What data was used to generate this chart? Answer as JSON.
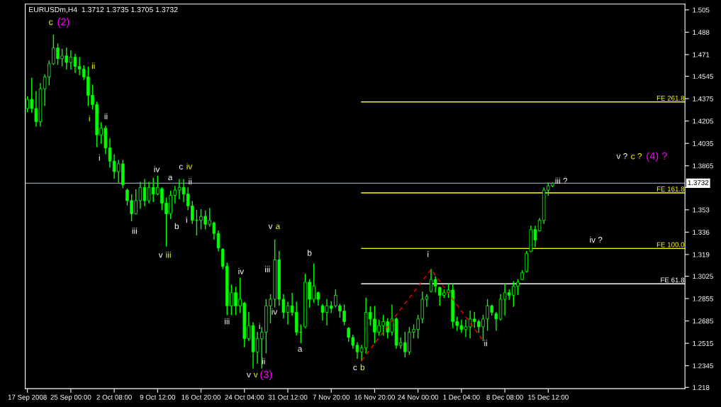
{
  "chart_data": {
    "type": "candlestick",
    "title": "EURUSDm,H4  1.3712 1.3735 1.3705 1.3732",
    "color": "#00ff00",
    "categories": [
      "17 Sep 2008",
      null,
      null,
      null,
      null,
      null,
      null,
      null,
      null,
      null,
      "25 Sep 00:00",
      null,
      null,
      null,
      null,
      null,
      null,
      null,
      null,
      null,
      "2 Oct 08:00",
      null,
      null,
      null,
      null,
      null,
      null,
      null,
      null,
      null,
      "9 Oct 12:00",
      null,
      null,
      null,
      null,
      null,
      null,
      null,
      null,
      null,
      "16 Oct 20:00",
      null,
      null,
      null,
      null,
      null,
      null,
      null,
      null,
      null,
      "24 Oct 04:00",
      null,
      null,
      null,
      null,
      null,
      null,
      null,
      null,
      null,
      "31 Oct 12:00",
      null,
      null,
      null,
      null,
      null,
      null,
      null,
      null,
      null,
      "7 Nov 20:00",
      null,
      null,
      null,
      null,
      null,
      null,
      null,
      null,
      null,
      "16 Nov 20:00",
      null,
      null,
      null,
      null,
      null,
      null,
      null,
      null,
      null,
      "24 Nov 00:00",
      null,
      null,
      null,
      null,
      null,
      null,
      null,
      null,
      null,
      "1 Dec 04:00",
      null,
      null,
      null,
      null,
      null,
      null,
      null,
      null,
      null,
      "8 Dec 08:00",
      null,
      null,
      null,
      null,
      null,
      null,
      null,
      null,
      null,
      "15 Dec 12:00",
      null,
      null,
      null,
      null,
      null,
      null,
      null,
      null,
      null,
      null,
      null,
      null,
      null,
      null,
      null,
      null,
      null,
      null,
      null,
      null,
      null,
      null,
      null,
      null,
      null,
      null,
      null,
      null,
      null,
      null,
      null
    ],
    "ohlc": [
      [
        1.43,
        1.439,
        1.4276,
        1.437
      ],
      [
        1.437,
        1.4531,
        1.427,
        1.43
      ],
      [
        1.43,
        1.4427,
        1.4166,
        1.42
      ],
      [
        1.42,
        1.4489,
        1.4166,
        1.445
      ],
      [
        1.445,
        1.4557,
        1.4323,
        1.454
      ],
      [
        1.454,
        1.4661,
        1.4479,
        1.464
      ],
      [
        1.464,
        1.4859,
        1.4635,
        1.476
      ],
      [
        1.476,
        1.4791,
        1.4635,
        1.468
      ],
      [
        1.468,
        1.475,
        1.4625,
        1.47
      ],
      [
        1.47,
        1.476,
        1.4599,
        1.465
      ],
      [
        1.465,
        1.4739,
        1.4599,
        1.469
      ],
      [
        1.469,
        1.4713,
        1.4573,
        1.462
      ],
      [
        1.462,
        1.4687,
        1.4557,
        1.46
      ],
      [
        1.46,
        1.4625,
        1.4521,
        1.454
      ],
      [
        1.454,
        1.4614,
        1.4323,
        1.44
      ],
      [
        1.44,
        1.4479,
        1.4296,
        1.433
      ],
      [
        1.433,
        1.4349,
        1.401,
        1.41
      ],
      [
        1.41,
        1.4192,
        1.4036,
        1.415
      ],
      [
        1.415,
        1.4166,
        1.3958,
        1.4
      ],
      [
        1.4,
        1.4072,
        1.3854,
        1.39
      ],
      [
        1.39,
        1.3947,
        1.377,
        1.382
      ],
      [
        1.382,
        1.3906,
        1.3739,
        1.388
      ],
      [
        1.388,
        1.3906,
        1.3697,
        1.372
      ],
      [
        1.368,
        1.3687,
        1.3567,
        1.36
      ],
      [
        1.36,
        1.3645,
        1.3447,
        1.35
      ],
      [
        1.35,
        1.3682,
        1.3499,
        1.36
      ],
      [
        1.36,
        1.3739,
        1.3541,
        1.37
      ],
      [
        1.37,
        1.376,
        1.3562,
        1.36
      ],
      [
        1.36,
        1.3739,
        1.3583,
        1.37
      ],
      [
        1.37,
        1.377,
        1.3593,
        1.365
      ],
      [
        1.365,
        1.3786,
        1.3645,
        1.37
      ],
      [
        1.369,
        1.3697,
        1.3531,
        1.358
      ],
      [
        1.358,
        1.3619,
        1.3254,
        1.35
      ],
      [
        1.35,
        1.3671,
        1.3463,
        1.364
      ],
      [
        1.364,
        1.3708,
        1.3583,
        1.368
      ],
      [
        1.368,
        1.376,
        1.3614,
        1.37
      ],
      [
        1.37,
        1.376,
        1.3593,
        1.365
      ],
      [
        1.365,
        1.3697,
        1.3531,
        1.356
      ],
      [
        1.356,
        1.3593,
        1.3426,
        1.345
      ],
      [
        1.345,
        1.3525,
        1.3338,
        1.345
      ],
      [
        1.345,
        1.3531,
        1.3385,
        1.348
      ],
      [
        1.348,
        1.352,
        1.3385,
        1.342
      ],
      [
        1.342,
        1.3541,
        1.3406,
        1.345
      ],
      [
        1.343,
        1.3437,
        1.3307,
        1.335
      ],
      [
        1.335,
        1.3369,
        1.3218,
        1.324
      ],
      [
        1.323,
        1.3234,
        1.3083,
        1.31
      ],
      [
        1.31,
        1.3124,
        1.2733,
        1.28
      ],
      [
        1.28,
        1.2958,
        1.2733,
        1.29
      ],
      [
        1.29,
        1.2942,
        1.2733,
        1.28
      ],
      [
        1.28,
        1.301,
        1.2749,
        1.285
      ],
      [
        1.282,
        1.2827,
        1.2489,
        1.255
      ],
      [
        1.255,
        1.2749,
        1.2536,
        1.265
      ],
      [
        1.265,
        1.2671,
        1.2327,
        1.245
      ],
      [
        1.245,
        1.2598,
        1.2364,
        1.255
      ],
      [
        1.255,
        1.2635,
        1.2327,
        1.26
      ],
      [
        1.26,
        1.2848,
        1.2442,
        1.28
      ],
      [
        1.28,
        1.2885,
        1.2671,
        1.285
      ],
      [
        1.285,
        1.3301,
        1.2791,
        1.315
      ],
      [
        1.315,
        1.3213,
        1.2806,
        1.285
      ],
      [
        1.285,
        1.2885,
        1.2707,
        1.275
      ],
      [
        1.275,
        1.2827,
        1.2661,
        1.28
      ],
      [
        1.28,
        1.2895,
        1.2728,
        1.275
      ],
      [
        1.275,
        1.2827,
        1.2577,
        1.26
      ],
      [
        1.26,
        1.2655,
        1.252,
        1.26
      ],
      [
        1.264,
        1.3041,
        1.2635,
        1.298
      ],
      [
        1.298,
        1.2999,
        1.2791,
        1.285
      ],
      [
        1.285,
        1.3119,
        1.2827,
        1.295
      ],
      [
        1.29,
        1.2905,
        1.2806,
        1.285
      ],
      [
        1.28,
        1.2812,
        1.2692,
        1.275
      ],
      [
        1.275,
        1.2848,
        1.2655,
        1.28
      ],
      [
        1.28,
        1.2832,
        1.2749,
        1.278
      ],
      [
        1.28,
        1.2921,
        1.2791,
        1.288
      ],
      [
        1.28,
        1.2812,
        1.2713,
        1.276
      ],
      [
        1.276,
        1.2806,
        1.2655,
        1.268
      ],
      [
        1.263,
        1.2635,
        1.253,
        1.256
      ],
      [
        1.256,
        1.2577,
        1.2478,
        1.25
      ],
      [
        1.25,
        1.252,
        1.24,
        1.245
      ],
      [
        1.245,
        1.2499,
        1.2384,
        1.248
      ],
      [
        1.248,
        1.2859,
        1.2442,
        1.275
      ],
      [
        1.275,
        1.2791,
        1.2655,
        1.27
      ],
      [
        1.27,
        1.2796,
        1.252,
        1.26
      ],
      [
        1.26,
        1.2692,
        1.2577,
        1.265
      ],
      [
        1.265,
        1.2728,
        1.2577,
        1.268
      ],
      [
        1.268,
        1.2702,
        1.2556,
        1.26
      ],
      [
        1.26,
        1.2806,
        1.2577,
        1.27
      ],
      [
        1.27,
        1.2707,
        1.2478,
        1.25
      ],
      [
        1.25,
        1.2556,
        1.2478,
        1.252
      ],
      [
        1.252,
        1.2598,
        1.241,
        1.245
      ],
      [
        1.245,
        1.2635,
        1.2431,
        1.26
      ],
      [
        1.26,
        1.2655,
        1.2556,
        1.262
      ],
      [
        1.262,
        1.2728,
        1.2556,
        1.27
      ],
      [
        1.27,
        1.2905,
        1.2671,
        1.285
      ],
      [
        1.285,
        1.2885,
        1.2796,
        1.287
      ],
      [
        1.291,
        1.3077,
        1.2905,
        1.3
      ],
      [
        1.3,
        1.302,
        1.2905,
        1.295
      ],
      [
        1.294,
        1.2942,
        1.2806,
        1.288
      ],
      [
        1.288,
        1.2921,
        1.2864,
        1.29
      ],
      [
        1.29,
        1.2963,
        1.2864,
        1.292
      ],
      [
        1.292,
        1.2963,
        1.2635,
        1.268
      ],
      [
        1.268,
        1.2713,
        1.2614,
        1.265
      ],
      [
        1.265,
        1.2692,
        1.2598,
        1.262
      ],
      [
        1.262,
        1.2692,
        1.2567,
        1.264
      ],
      [
        1.264,
        1.276,
        1.2556,
        1.27
      ],
      [
        1.27,
        1.2749,
        1.2635,
        1.268
      ],
      [
        1.268,
        1.2692,
        1.2598,
        1.264
      ],
      [
        1.264,
        1.2728,
        1.2536,
        1.27
      ],
      [
        1.27,
        1.2848,
        1.2614,
        1.28
      ],
      [
        1.28,
        1.2806,
        1.2728,
        1.275
      ],
      [
        1.274,
        1.2749,
        1.2614,
        1.27
      ],
      [
        1.27,
        1.2885,
        1.2692,
        1.285
      ],
      [
        1.285,
        1.2963,
        1.2728,
        1.29
      ],
      [
        1.29,
        1.2921,
        1.2848,
        1.288
      ],
      [
        1.288,
        1.2984,
        1.2796,
        1.295
      ],
      [
        1.295,
        1.2999,
        1.2885,
        1.298
      ],
      [
        1.3,
        1.3067,
        1.2999,
        1.305
      ],
      [
        1.306,
        1.3213,
        1.3057,
        1.32
      ],
      [
        1.3213,
        1.3406,
        1.3213,
        1.338
      ],
      [
        1.338,
        1.3406,
        1.3249,
        1.33
      ],
      [
        1.337,
        1.3463,
        1.3369,
        1.345
      ],
      [
        1.345,
        1.3697,
        1.3426,
        1.368
      ],
      [
        1.368,
        1.3734,
        1.364,
        1.3712
      ],
      [
        1.3712,
        1.3735,
        1.3705,
        1.3732
      ],
      null,
      null,
      null,
      null,
      null,
      null,
      null,
      null,
      null,
      null,
      null,
      null,
      null,
      null,
      null,
      null,
      null,
      null,
      null,
      null,
      null,
      null,
      null,
      null,
      null,
      null,
      null,
      null,
      null,
      null
    ],
    "series": [
      {
        "type": "line",
        "color": "#ff0000",
        "line_style": "dashed",
        "values": [
          null,
          null,
          null,
          null,
          null,
          null,
          null,
          null,
          null,
          null,
          null,
          null,
          null,
          null,
          null,
          null,
          null,
          null,
          null,
          null,
          null,
          null,
          null,
          null,
          null,
          null,
          null,
          null,
          null,
          null,
          null,
          null,
          null,
          null,
          null,
          null,
          null,
          null,
          null,
          null,
          null,
          null,
          null,
          null,
          null,
          null,
          null,
          null,
          null,
          null,
          null,
          null,
          null,
          null,
          null,
          null,
          null,
          null,
          null,
          null,
          null,
          null,
          null,
          null,
          null,
          null,
          null,
          null,
          null,
          null,
          null,
          null,
          null,
          null,
          null,
          null,
          null,
          1.2384,
          null,
          null,
          null,
          null,
          null,
          null,
          null,
          null,
          null,
          null,
          null,
          null,
          null,
          null,
          null,
          1.3077,
          null,
          null,
          null,
          null,
          null,
          null,
          null,
          null,
          null,
          null,
          null,
          1.2536,
          null,
          null,
          null,
          null,
          null,
          null,
          null,
          null,
          null,
          null,
          null,
          null,
          null,
          null,
          null,
          null,
          null,
          null,
          null,
          null,
          null,
          null,
          null,
          null,
          null,
          null,
          null,
          null,
          null,
          null,
          null,
          null,
          null,
          null,
          null,
          null,
          null,
          null,
          null,
          null,
          null,
          null,
          null,
          null,
          null,
          null
        ]
      }
    ],
    "ylim": [
      1.217,
      1.5094
    ],
    "yticks": [
      1.505,
      1.488,
      1.471,
      1.4545,
      1.4375,
      1.4205,
      1.4035,
      1.3865,
      {
        "value": 1.37,
        "label": null
      },
      1.353,
      1.336,
      1.319,
      1.3025,
      1.2855,
      1.2685,
      1.2515,
      1.2345,
      1.218
    ],
    "ref_lines": [
      {
        "axis": "y",
        "value": 1.3732,
        "label": "1.3732",
        "color": "#8a9aa8"
      },
      {
        "axis": "y",
        "value": 1.435,
        "label": "FE 261.8",
        "color": "#ffff00"
      },
      {
        "axis": "y",
        "value": 1.3659,
        "label": "FE 161.8",
        "color": "#ffff00"
      },
      {
        "axis": "y",
        "value": 1.3236,
        "label": "FE 100.0",
        "color": "#ffff00"
      },
      {
        "axis": "y",
        "value": 1.2967,
        "label": "FE 61.8",
        "color": "#ffffff"
      }
    ],
    "annotations": [
      "c",
      "(2)",
      "ii",
      "i",
      "ii",
      "i",
      "iv",
      "c",
      "iv",
      "a",
      "ii",
      "iii",
      "b",
      "i",
      "v",
      "iii",
      "iii",
      "iv",
      "v",
      "a",
      "iii",
      "iv",
      "i",
      "ii",
      "v",
      "v",
      "(3)",
      "b",
      "a",
      "c",
      "b",
      "i",
      "ii",
      "iii ?",
      "iv ?",
      "v ?",
      "c ?",
      "(4) ?"
    ]
  }
}
